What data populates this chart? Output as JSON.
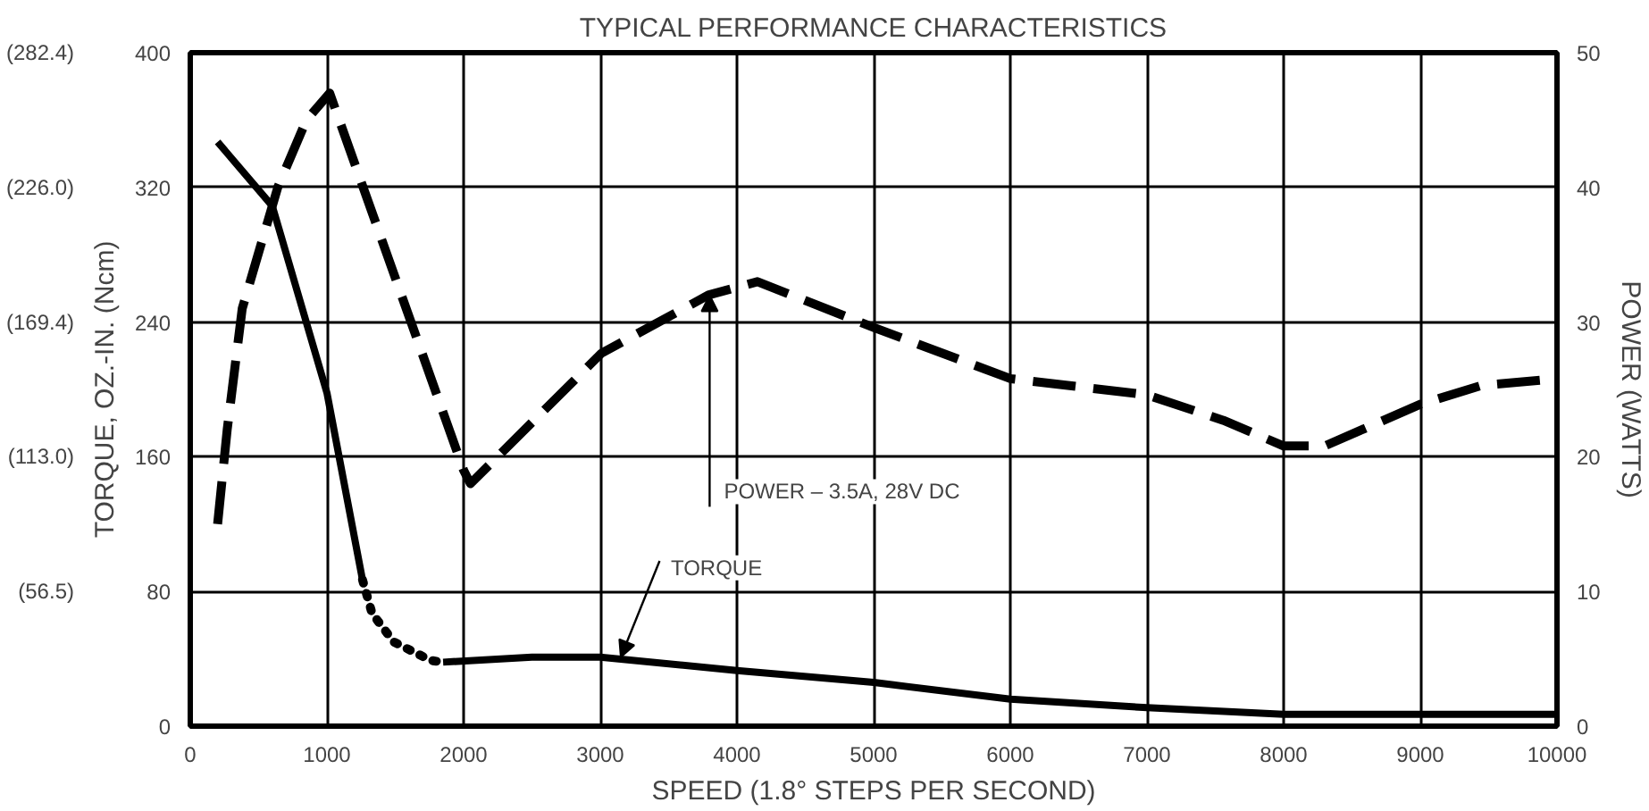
{
  "chart_data": {
    "type": "line",
    "title": "TYPICAL PERFORMANCE CHARACTERISTICS",
    "xlabel": "SPEED (1.8° STEPS PER SECOND)",
    "ylabel": "TORQUE, OZ.-IN. (Ncm)",
    "y2label": "POWER (WATTS)",
    "xlim": [
      0,
      10000
    ],
    "xticks": [
      0,
      1000,
      2000,
      3000,
      4000,
      5000,
      6000,
      7000,
      8000,
      9000,
      10000
    ],
    "ylim": [
      0,
      400
    ],
    "yticks": [
      0,
      80,
      160,
      240,
      320,
      400
    ],
    "y3lim": [
      0,
      282.4
    ],
    "y3ticks": [
      {
        "value": 56.5,
        "label": "(56.5)"
      },
      {
        "value": 113.0,
        "label": "(113.0)"
      },
      {
        "value": 169.4,
        "label": "(169.4)"
      },
      {
        "value": 226.0,
        "label": "(226.0)"
      },
      {
        "value": 282.4,
        "label": "(282.4)"
      }
    ],
    "y2lim": [
      0,
      50
    ],
    "y2ticks": [
      0,
      10,
      20,
      30,
      40,
      50
    ],
    "grid": true,
    "marker": "none",
    "series": [
      {
        "color": "#000000",
        "line_style": "solid",
        "x": [
          200,
          600,
          1000,
          1260
        ],
        "values": [
          347,
          309,
          198,
          87
        ]
      },
      {
        "color": "#000000",
        "line_style": "dotted",
        "x": [
          1260,
          1330,
          1490,
          1760,
          1850
        ],
        "values": [
          87,
          67,
          50,
          39,
          38
        ]
      },
      {
        "color": "#000000",
        "line_style": "solid",
        "x": [
          1850,
          2500,
          3000,
          4000,
          5000,
          6000,
          7000,
          8000,
          9000,
          10000
        ],
        "values": [
          38,
          41,
          41,
          33,
          26,
          16,
          11,
          7,
          7,
          7
        ]
      },
      {
        "color": "#000000",
        "line_style": "dashed",
        "axis": "y2",
        "x": [
          200,
          270,
          380,
          640,
          850,
          1020,
          2000,
          2050,
          3010,
          3790,
          4150,
          5000,
          6000,
          7000,
          7560,
          8000,
          8300,
          9000,
          9450,
          10000
        ],
        "values": [
          15,
          22,
          31,
          40,
          45,
          47,
          19,
          18,
          27.7,
          32,
          33,
          29.6,
          25.8,
          24.6,
          22.7,
          20.8,
          20.8,
          23.9,
          25.3,
          25.8
        ]
      }
    ],
    "annotations": [
      {
        "text": "POWER – 3.5A, 28V DC",
        "x": 3800,
        "y": 256
      },
      {
        "text": "TORQUE",
        "x": 3150,
        "y": 41
      }
    ]
  }
}
